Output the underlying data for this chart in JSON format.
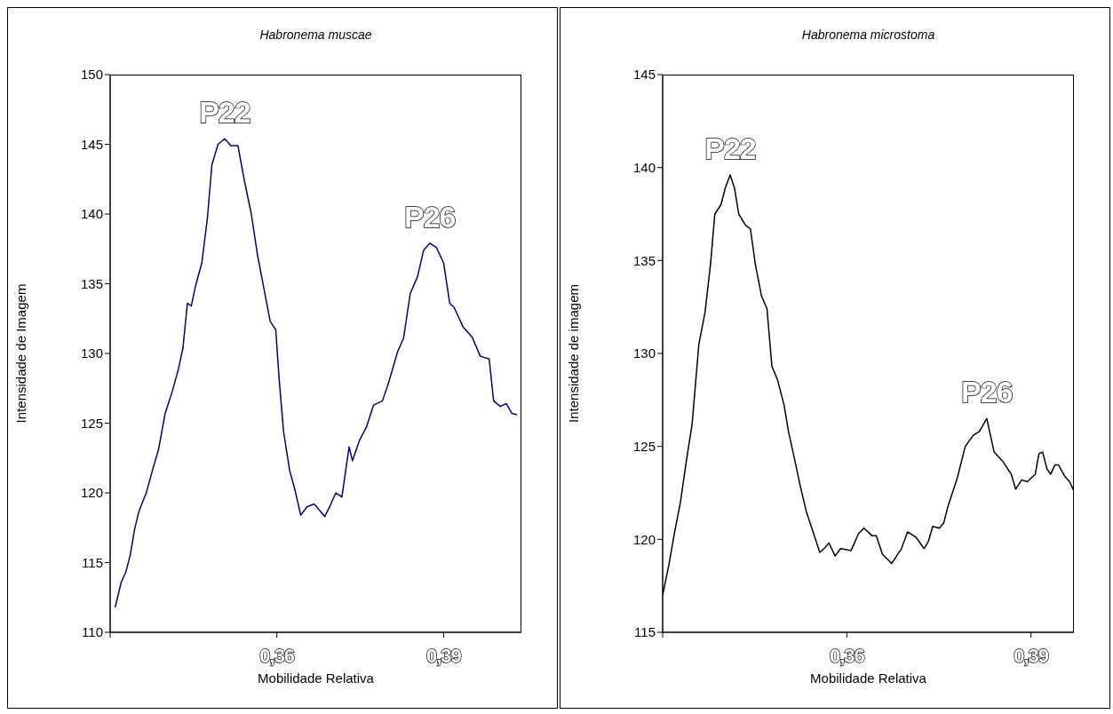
{
  "chart_data": [
    {
      "type": "line",
      "title": "Habronema muscae",
      "xlabel": "Mobilidade Relativa",
      "ylabel": "Intensidade de Imagem",
      "color": "#000080",
      "x": [
        0.3309,
        0.332,
        0.3328,
        0.3336,
        0.3344,
        0.3352,
        0.3365,
        0.3376,
        0.3387,
        0.3399,
        0.3412,
        0.3423,
        0.3431,
        0.3439,
        0.3446,
        0.3454,
        0.3465,
        0.3475,
        0.3483,
        0.3494,
        0.3506,
        0.3517,
        0.353,
        0.3541,
        0.3554,
        0.3565,
        0.3577,
        0.3588,
        0.3598,
        0.3604,
        0.3612,
        0.3623,
        0.3632,
        0.3643,
        0.3654,
        0.3667,
        0.3678,
        0.3686,
        0.3695,
        0.3706,
        0.3717,
        0.373,
        0.3736,
        0.3749,
        0.3761,
        0.3774,
        0.379,
        0.3801,
        0.3817,
        0.3828,
        0.384,
        0.3853,
        0.3864,
        0.3875,
        0.3887,
        0.39,
        0.3911,
        0.3919,
        0.3935,
        0.3951,
        0.3966,
        0.3982,
        0.399,
        0.4002,
        0.4013,
        0.4023,
        0.4032
      ],
      "values": [
        111.8,
        113.6,
        114.3,
        115.5,
        117.4,
        118.7,
        120.0,
        121.6,
        123.1,
        125.7,
        127.3,
        128.9,
        130.4,
        133.6,
        133.4,
        134.9,
        136.5,
        139.7,
        143.5,
        145.0,
        145.4,
        144.9,
        144.9,
        142.5,
        140.0,
        137.1,
        134.6,
        132.3,
        131.7,
        128.2,
        124.4,
        121.6,
        120.3,
        118.4,
        119.0,
        119.2,
        118.7,
        118.3,
        119.0,
        120.0,
        119.7,
        123.3,
        122.3,
        123.8,
        124.7,
        126.3,
        126.6,
        127.9,
        130.1,
        131.1,
        134.3,
        135.5,
        137.4,
        137.9,
        137.6,
        136.5,
        133.6,
        133.3,
        131.9,
        131.2,
        129.8,
        129.6,
        126.6,
        126.2,
        126.4,
        125.7,
        125.6
      ],
      "xlim": [
        0.33,
        0.404
      ],
      "xticks": [
        {
          "value": 0.33,
          "label": null
        },
        {
          "value": 0.36,
          "label": "0,36"
        },
        {
          "value": 0.39,
          "label": "0,39"
        }
      ],
      "ylim": [
        110,
        150
      ],
      "yticks": [
        110,
        115,
        120,
        125,
        130,
        135,
        140,
        145,
        150
      ],
      "grid": false,
      "annotations": [
        {
          "text": "P22",
          "x": 0.3506,
          "y": 145.4
        },
        {
          "text": "P26",
          "x": 0.3875,
          "y": 137.9
        }
      ]
    },
    {
      "type": "line",
      "title": "Habronema microstoma",
      "xlabel": "Mobilidade Relativa",
      "ylabel": "Intensidade de imagem",
      "color": "#000000",
      "x": [
        0.33,
        0.331,
        0.3319,
        0.3329,
        0.3339,
        0.3348,
        0.3359,
        0.3369,
        0.3378,
        0.3385,
        0.3395,
        0.3402,
        0.341,
        0.3417,
        0.3424,
        0.3435,
        0.3443,
        0.3451,
        0.3461,
        0.347,
        0.3478,
        0.3487,
        0.3498,
        0.3505,
        0.3515,
        0.3524,
        0.3534,
        0.3546,
        0.3556,
        0.3563,
        0.3571,
        0.3581,
        0.359,
        0.3607,
        0.3619,
        0.3628,
        0.3641,
        0.3648,
        0.3658,
        0.3673,
        0.3689,
        0.3699,
        0.3713,
        0.3726,
        0.3733,
        0.374,
        0.3751,
        0.3758,
        0.3765,
        0.378,
        0.3793,
        0.3806,
        0.3816,
        0.3828,
        0.384,
        0.3854,
        0.3868,
        0.3875,
        0.3885,
        0.3894,
        0.3907,
        0.3913,
        0.3919,
        0.3926,
        0.3932,
        0.3939,
        0.3945,
        0.3955,
        0.3963,
        0.397
      ],
      "values": [
        117.0,
        118.6,
        120.3,
        122.0,
        124.3,
        126.2,
        130.5,
        132.2,
        134.8,
        137.5,
        138.0,
        138.9,
        139.6,
        138.9,
        137.5,
        136.9,
        136.7,
        134.8,
        133.1,
        132.4,
        129.3,
        128.6,
        127.2,
        125.8,
        124.3,
        122.9,
        121.5,
        120.3,
        119.3,
        119.5,
        119.8,
        119.1,
        119.5,
        119.4,
        120.3,
        120.6,
        120.2,
        120.2,
        119.2,
        118.7,
        119.5,
        120.4,
        120.1,
        119.5,
        119.9,
        120.7,
        120.6,
        120.9,
        121.8,
        123.3,
        125.0,
        125.6,
        125.8,
        126.5,
        124.7,
        124.2,
        123.5,
        122.7,
        123.2,
        123.1,
        123.5,
        124.6,
        124.7,
        123.8,
        123.5,
        124.0,
        124.0,
        123.4,
        123.1,
        122.6
      ],
      "xlim": [
        0.33,
        0.397
      ],
      "xticks": [
        {
          "value": 0.33,
          "label": null
        },
        {
          "value": 0.36,
          "label": "0,36"
        },
        {
          "value": 0.39,
          "label": "0,39"
        }
      ],
      "ylim": [
        115,
        145
      ],
      "yticks": [
        115,
        120,
        125,
        130,
        135,
        140,
        145
      ],
      "grid": false,
      "annotations": [
        {
          "text": "P22",
          "x": 0.341,
          "y": 139.6
        },
        {
          "text": "P26",
          "x": 0.3828,
          "y": 126.5
        }
      ]
    }
  ]
}
